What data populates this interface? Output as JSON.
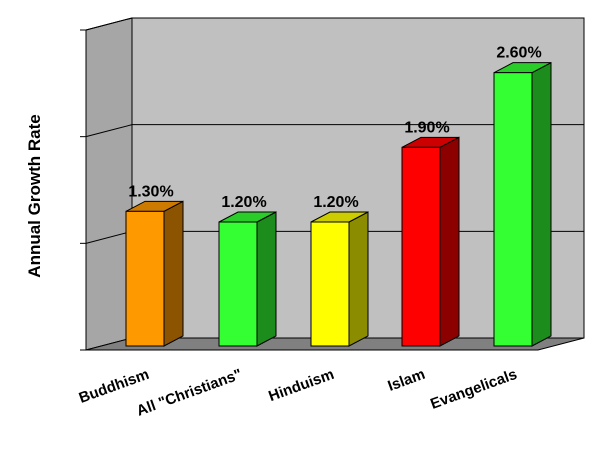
{
  "chart_data": {
    "type": "bar",
    "title": "",
    "xlabel": "",
    "ylabel": "Annual Growth Rate",
    "categories": [
      "Buddhism",
      "All \"Christians\"",
      "Hinduism",
      "Islam",
      "Evangelicals"
    ],
    "values": [
      1.3,
      1.2,
      1.2,
      1.9,
      2.6
    ],
    "value_labels": [
      "1.30%",
      "1.20%",
      "1.20%",
      "1.90%",
      "2.60%"
    ],
    "ylim": [
      0,
      3
    ],
    "grid": true,
    "legend": "none",
    "style": "3d",
    "bar_colors": [
      "#ff9900",
      "#33ff33",
      "#ffff00",
      "#ff0000",
      "#33ff33"
    ]
  }
}
